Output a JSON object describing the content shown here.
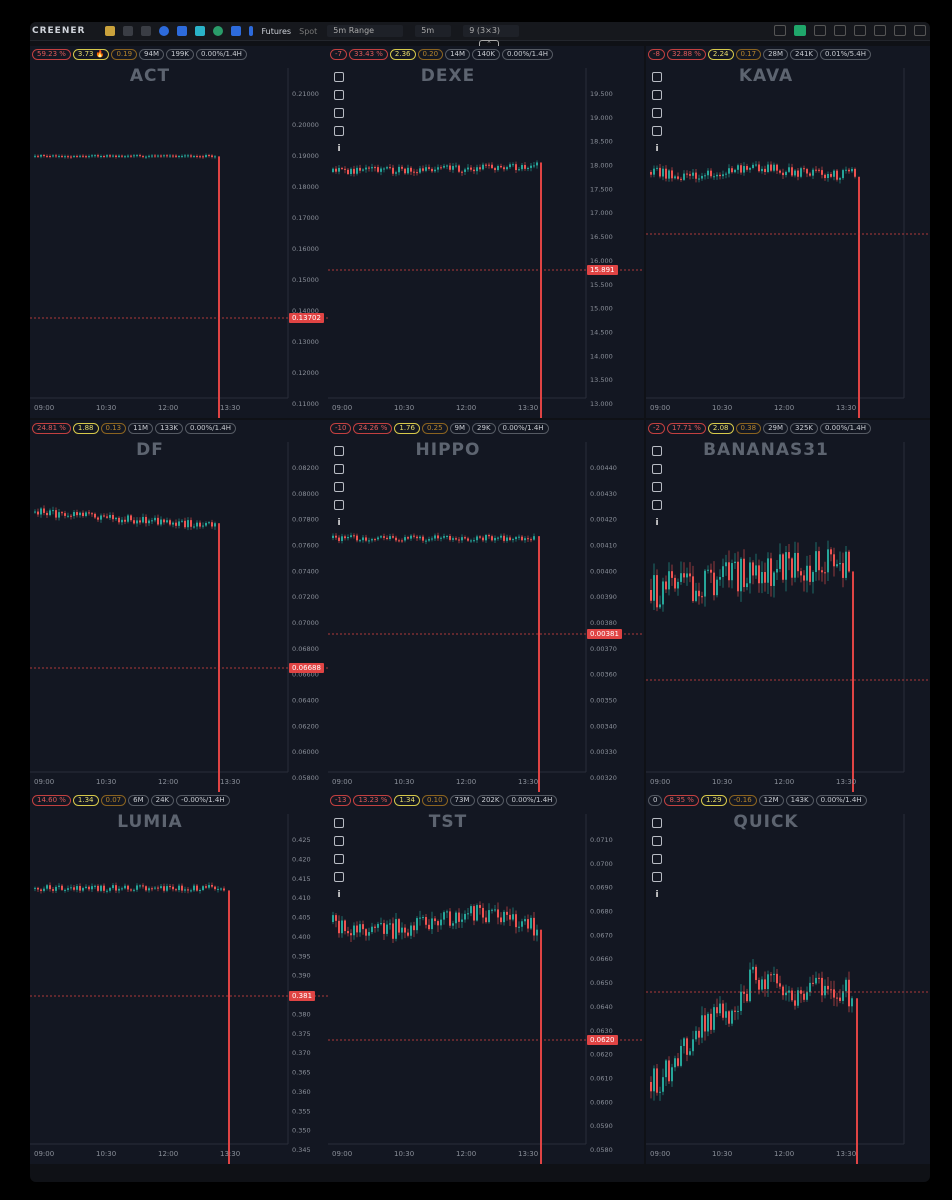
{
  "topbar": {
    "brand": "CREENER",
    "market_futures": "Futures",
    "market_spot": "Spot",
    "range": "5m Range",
    "interval": "5m",
    "grid": "9 (3×3)"
  },
  "panels": [
    {
      "symbol": "ACT",
      "badges": [
        "59.23 %",
        "3.73 🔥",
        "0.19",
        "94M",
        "199K",
        "0.00%/1.4H"
      ],
      "yticks": [
        "0.21000",
        "0.20000",
        "0.19000",
        "0.18000",
        "0.17000",
        "0.16000",
        "0.15000",
        "0.14000",
        "0.13000",
        "0.12000",
        "0.11000"
      ],
      "xticks": [
        "09:00",
        "10:30",
        "12:00",
        "13:30"
      ],
      "price": "0.13702",
      "tools": false
    },
    {
      "symbol": "DEXE",
      "badges": [
        "-7",
        "33.43 %",
        "2.36",
        "0.20",
        "14M",
        "140K",
        "0.00%/1.4H"
      ],
      "yticks": [
        "19.500",
        "19.000",
        "18.500",
        "18.000",
        "17.500",
        "17.000",
        "16.500",
        "16.000",
        "15.500",
        "15.000",
        "14.500",
        "14.000",
        "13.500",
        "13.000"
      ],
      "xticks": [
        "09:00",
        "10:30",
        "12:00",
        "13:30"
      ],
      "price": "15.891",
      "tools": true
    },
    {
      "symbol": "KAVA",
      "badges": [
        "-8",
        "32.88 %",
        "2.24",
        "0.17",
        "28M",
        "241K",
        "0.01%/5.4H"
      ],
      "yticks": [],
      "xticks": [
        "09:00",
        "10:30",
        "12:00",
        "13:30"
      ],
      "price": "",
      "tools": true
    },
    {
      "symbol": "DF",
      "badges": [
        "24.81 %",
        "1.88",
        "0.13",
        "11M",
        "133K",
        "0.00%/1.4H"
      ],
      "yticks": [
        "0.08200",
        "0.08000",
        "0.07800",
        "0.07600",
        "0.07400",
        "0.07200",
        "0.07000",
        "0.06800",
        "0.06600",
        "0.06400",
        "0.06200",
        "0.06000",
        "0.05800"
      ],
      "xticks": [
        "09:00",
        "10:30",
        "12:00",
        "13:30"
      ],
      "price": "0.06688",
      "tools": false
    },
    {
      "symbol": "HIPPO",
      "badges": [
        "-10",
        "24.26 %",
        "1.76",
        "0.25",
        "9M",
        "29K",
        "0.00%/1.4H"
      ],
      "yticks": [
        "0.00440",
        "0.00430",
        "0.00420",
        "0.00410",
        "0.00400",
        "0.00390",
        "0.00380",
        "0.00370",
        "0.00360",
        "0.00350",
        "0.00340",
        "0.00330",
        "0.00320"
      ],
      "xticks": [
        "09:00",
        "10:30",
        "12:00",
        "13:30"
      ],
      "price": "0.00381",
      "tools": true
    },
    {
      "symbol": "BANANAS31",
      "badges": [
        "-2",
        "17.71 %",
        "2.08",
        "0.38",
        "29M",
        "325K",
        "0.00%/1.4H"
      ],
      "yticks": [],
      "xticks": [
        "09:00",
        "10:30",
        "12:00",
        "13:30"
      ],
      "price": "",
      "tools": true
    },
    {
      "symbol": "LUMIA",
      "badges": [
        "14.60 %",
        "1.34",
        "0.07",
        "6M",
        "24K",
        "-0.00%/1.4H"
      ],
      "yticks": [
        "0.425",
        "0.420",
        "0.415",
        "0.410",
        "0.405",
        "0.400",
        "0.395",
        "0.390",
        "0.385",
        "0.380",
        "0.375",
        "0.370",
        "0.365",
        "0.360",
        "0.355",
        "0.350",
        "0.345"
      ],
      "xticks": [
        "09:00",
        "10:30",
        "12:00",
        "13:30"
      ],
      "price": "0.381",
      "tools": false
    },
    {
      "symbol": "TST",
      "badges": [
        "-13",
        "13.23 %",
        "1.34",
        "0.10",
        "73M",
        "202K",
        "0.00%/1.4H"
      ],
      "yticks": [
        "0.0710",
        "0.0700",
        "0.0690",
        "0.0680",
        "0.0670",
        "0.0660",
        "0.0650",
        "0.0640",
        "0.0630",
        "0.0620",
        "0.0610",
        "0.0600",
        "0.0590",
        "0.0580"
      ],
      "xticks": [
        "09:00",
        "10:30",
        "12:00",
        "13:30"
      ],
      "price": "0.0620",
      "tools": true
    },
    {
      "symbol": "QUICK",
      "badges": [
        "0",
        "8.35 %",
        "1.29",
        "-0.16",
        "12M",
        "143K",
        "0.00%/1.4H"
      ],
      "yticks": [],
      "xticks": [
        "09:00",
        "10:30",
        "12:00",
        "13:30"
      ],
      "price": "",
      "tools": true
    }
  ],
  "colors": {
    "up": "#26a69a",
    "down": "#ef5350",
    "drop": "#e04444",
    "panel_bg": "#131722",
    "text": "#6b717c"
  }
}
